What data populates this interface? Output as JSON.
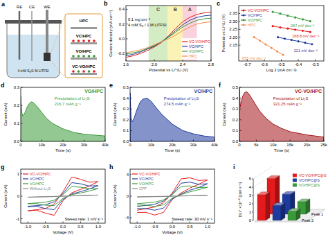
{
  "diagram": {
    "label": "a",
    "electrodes": [
      "RE",
      "CE",
      "WE"
    ],
    "electrolyte": "4 mM S₈/1 M LiTFSI",
    "samples": [
      "HPC",
      "VC/HPC",
      "VO/HPC",
      "VC-VO/HPC"
    ]
  },
  "chart_data": [
    {
      "label": "b",
      "type": "line",
      "x_label": "Potential vs Li⁺/Li (V)",
      "y_label": "Current density (mA cm⁻²)",
      "x": [
        1.6,
        1.7,
        1.8,
        1.9,
        2.0,
        2.1,
        2.2,
        2.3,
        2.4,
        2.5,
        2.6,
        2.7,
        2.8
      ],
      "xlim": [
        1.6,
        2.8
      ],
      "xticks": [
        1.6,
        {
          "value": 2,
          "label": "2.0"
        },
        2.4,
        2.8
      ],
      "ylim": [
        -0.3,
        0.45
      ],
      "yticks": [
        -0.2,
        {
          "value": 0,
          "label": "0.0"
        },
        0.2,
        0.4
      ],
      "regions": [
        {
          "label": "C",
          "from": 1.92,
          "to": 2.19,
          "color": "#d4ecc4"
        },
        {
          "label": "B",
          "from": 2.19,
          "to": 2.4,
          "color": "#fbf2b5"
        },
        {
          "label": "A",
          "from": 2.4,
          "to": 2.6,
          "color": "#f9d2de"
        }
      ],
      "annotations": [
        "0.1 mg cm⁻²",
        "4 mM S₈ / 1 M LiTFSI"
      ],
      "legend": "lower right",
      "series": [
        {
          "name": "VC-VO/HPC",
          "color": "#e41a1c",
          "values": [
            -0.25,
            -0.23,
            -0.2,
            -0.16,
            -0.11,
            -0.05,
            0.04,
            0.14,
            0.23,
            0.29,
            0.33,
            0.35,
            0.36
          ]
        },
        {
          "name": "VC/HPC",
          "color": "#1f3a9e",
          "values": [
            -0.23,
            -0.21,
            -0.18,
            -0.14,
            -0.1,
            -0.04,
            0.03,
            0.11,
            0.19,
            0.25,
            0.29,
            0.31,
            0.32
          ]
        },
        {
          "name": "VO/HPC",
          "color": "#3a9a3a",
          "values": [
            -0.21,
            -0.19,
            -0.17,
            -0.13,
            -0.09,
            -0.04,
            0.02,
            0.09,
            0.16,
            0.21,
            0.25,
            0.27,
            0.28
          ]
        },
        {
          "name": "HPC",
          "color": "#f28e4b",
          "values": [
            -0.19,
            -0.17,
            -0.15,
            -0.12,
            -0.08,
            -0.04,
            0.0,
            0.05,
            0.11,
            0.16,
            0.2,
            0.22,
            0.23
          ]
        }
      ]
    },
    {
      "label": "c",
      "type": "line",
      "x_label": "Log J (mA cm⁻²)",
      "y_label": "Potential vs Li⁺/Li (V)",
      "xlim": [
        -0.75,
        -0.25
      ],
      "xticks": [
        -0.7,
        -0.6,
        -0.5,
        -0.4,
        -0.3
      ],
      "ylim": [
        2.05,
        2.4
      ],
      "yticks": [
        2.15,
        {
          "value": 2.2,
          "label": "2.20"
        },
        2.25,
        {
          "value": 2.3,
          "label": "2.30"
        },
        2.35
      ],
      "legend": "upper left",
      "series": [
        {
          "name": "VC-VO/HPC",
          "color": "#e41a1c",
          "marker": "circle",
          "slope_label": "168.8 mV dec⁻¹",
          "x": [
            -0.55,
            -0.506,
            -0.462,
            -0.418,
            -0.374,
            -0.33
          ],
          "values": [
            2.27,
            2.262,
            2.255,
            2.248,
            2.241,
            2.233
          ]
        },
        {
          "name": "VC/HPC",
          "color": "#1f3a9e",
          "marker": "circle",
          "slope_label": "221 mV dec⁻¹",
          "x": [
            -0.52,
            -0.48,
            -0.44,
            -0.4,
            -0.36,
            -0.32
          ],
          "values": [
            2.2,
            2.191,
            2.183,
            2.174,
            2.165,
            2.156
          ]
        },
        {
          "name": "VO/HPC",
          "color": "#3a9a3a",
          "marker": "circle",
          "slope_label": "267 mV dec⁻¹",
          "x": [
            -0.55,
            -0.506,
            -0.462,
            -0.418,
            -0.374,
            -0.33
          ],
          "values": [
            2.36,
            2.349,
            2.336,
            2.325,
            2.313,
            2.301
          ]
        },
        {
          "name": "HPC",
          "color": "#f28e4b",
          "marker": "circle",
          "slope_label": "653 mV dec⁻¹",
          "x": [
            -0.66,
            -0.626,
            -0.592,
            -0.558,
            -0.524,
            -0.49
          ],
          "values": [
            2.2,
            2.178,
            2.155,
            2.133,
            2.111,
            2.089
          ]
        }
      ]
    },
    {
      "label": "d",
      "type": "area",
      "x_label": "Time (s)",
      "y_label": "Current (mA)",
      "x": [
        0,
        500,
        1000,
        2000,
        3000,
        4000,
        5000,
        6000,
        8000,
        10000,
        12000,
        15000,
        20000,
        25000,
        30000,
        35000,
        40000
      ],
      "xlim": [
        0,
        40000
      ],
      "xticks": [
        0,
        {
          "value": 10000,
          "label": "10k"
        },
        {
          "value": 20000,
          "label": "20k"
        },
        {
          "value": 30000,
          "label": "30k"
        },
        {
          "value": 40000,
          "label": "40k"
        }
      ],
      "ylim": [
        0,
        0.3
      ],
      "yticks": [
        {
          "value": 0,
          "label": "0.0"
        },
        0.1,
        0.2,
        0.3
      ],
      "annotations": [
        "Precipitation of Li₂S",
        "216.7 mAh g⁻¹"
      ],
      "series": [
        {
          "name": "VO/HPC",
          "color": "#3a9a3a",
          "values": [
            0.25,
            0.16,
            0.14,
            0.16,
            0.19,
            0.21,
            0.22,
            0.215,
            0.19,
            0.16,
            0.13,
            0.1,
            0.07,
            0.05,
            0.04,
            0.035,
            0.03
          ]
        }
      ]
    },
    {
      "label": "e",
      "type": "area",
      "x_label": "Time (s)",
      "y_label": "Current (mA)",
      "x": [
        0,
        500,
        1000,
        2000,
        3000,
        4000,
        5000,
        6000,
        8000,
        10000,
        12000,
        15000,
        20000,
        25000,
        30000,
        35000,
        40000
      ],
      "xlim": [
        0,
        40000
      ],
      "xticks": [
        0,
        {
          "value": 10000,
          "label": "10k"
        },
        {
          "value": 20000,
          "label": "20k"
        },
        {
          "value": 30000,
          "label": "30k"
        },
        {
          "value": 40000,
          "label": "40k"
        }
      ],
      "ylim": [
        0,
        0.5
      ],
      "yticks": [
        {
          "value": 0,
          "label": "0.0"
        },
        0.1,
        0.2,
        0.3,
        0.4,
        0.5
      ],
      "annotations": [
        "Precipitation of Li₂S",
        "274.5 mAh g⁻¹"
      ],
      "series": [
        {
          "name": "VC/HPC",
          "color": "#1f3a9e",
          "values": [
            0.45,
            0.2,
            0.18,
            0.22,
            0.28,
            0.33,
            0.37,
            0.39,
            0.4,
            0.37,
            0.32,
            0.25,
            0.16,
            0.1,
            0.07,
            0.05,
            0.04
          ]
        }
      ]
    },
    {
      "label": "f",
      "type": "area",
      "x_label": "Time (s)",
      "y_label": "Current (mA)",
      "x": [
        0,
        250,
        500,
        1000,
        1500,
        2000,
        2500,
        3000,
        4000,
        5000,
        6000,
        8000,
        10000,
        12500,
        15000,
        20000,
        25000
      ],
      "xlim": [
        0,
        25000
      ],
      "xticks": [
        0,
        {
          "value": 5000,
          "label": "5k"
        },
        {
          "value": 10000,
          "label": "10k"
        },
        {
          "value": 15000,
          "label": "15k"
        },
        {
          "value": 20000,
          "label": "20k"
        },
        {
          "value": 25000,
          "label": "25k"
        }
      ],
      "ylim": [
        0,
        0.5
      ],
      "yticks": [
        {
          "value": 0,
          "label": "0.0"
        },
        0.1,
        0.2,
        0.3,
        0.4,
        0.5
      ],
      "annotations": [
        "Precipitation of Li₂S",
        "321.25 mAh g⁻¹"
      ],
      "series": [
        {
          "name": "VC-VO/HPC",
          "color": "#a3141a",
          "values": [
            0.5,
            0.32,
            0.36,
            0.42,
            0.45,
            0.46,
            0.45,
            0.43,
            0.38,
            0.33,
            0.28,
            0.21,
            0.16,
            0.12,
            0.09,
            0.06,
            0.04
          ]
        }
      ]
    },
    {
      "label": "g",
      "type": "line",
      "x_label": "Voltage (V)",
      "y_label": "Current (mA)",
      "x": [
        -1,
        -0.75,
        -0.5,
        -0.25,
        0,
        0.25,
        0.5,
        0.75,
        1,
        0.75,
        0.5,
        0.25,
        0,
        -0.25,
        -0.5,
        -0.75,
        -1
      ],
      "xlim": [
        -1.2,
        1.2
      ],
      "xticks": [
        {
          "value": -1,
          "label": "-1.0"
        },
        -0.5,
        {
          "value": 0,
          "label": "0.0"
        },
        0.5,
        {
          "value": 1,
          "label": "1.0"
        }
      ],
      "ylim": [
        -1.2,
        1.2
      ],
      "yticks": [
        -1,
        0,
        1
      ],
      "annotations": [
        "Sweep rate: 1 mV s⁻¹"
      ],
      "legend": "upper left",
      "series": [
        {
          "name": "VC-VO/HPC",
          "color": "#e41a1c",
          "values": [
            -0.65,
            -0.6,
            -0.55,
            -0.35,
            0.2,
            0.85,
            0.75,
            0.62,
            0.65,
            0.45,
            0.3,
            0.15,
            -0.2,
            -0.85,
            -0.75,
            -0.62,
            -0.65
          ]
        },
        {
          "name": "VC/HPC",
          "color": "#1f3a9e",
          "values": [
            -0.45,
            -0.42,
            -0.38,
            -0.25,
            0.12,
            0.6,
            0.55,
            0.45,
            0.47,
            0.32,
            0.2,
            0.1,
            -0.14,
            -0.6,
            -0.55,
            -0.45,
            -0.47
          ]
        },
        {
          "name": "VO/HPC",
          "color": "#3a9a3a",
          "values": [
            -0.33,
            -0.3,
            -0.27,
            -0.18,
            0.08,
            0.42,
            0.4,
            0.33,
            0.34,
            0.23,
            0.14,
            0.07,
            -0.1,
            -0.42,
            -0.4,
            -0.33,
            -0.34
          ]
        },
        {
          "name": "Without Li₂S",
          "color": "#888888",
          "values": [
            -0.05,
            -0.04,
            -0.03,
            -0.02,
            0,
            0.02,
            0.03,
            0.04,
            0.05,
            0.03,
            0.02,
            0.01,
            0,
            -0.01,
            -0.02,
            -0.03,
            -0.04
          ]
        }
      ]
    },
    {
      "label": "h",
      "type": "line",
      "x_label": "Voltage (V)",
      "y_label": "Current (mA)",
      "x": [
        -1,
        -0.75,
        -0.5,
        -0.25,
        0,
        0.25,
        0.5,
        0.75,
        1,
        0.75,
        0.5,
        0.25,
        0,
        -0.25,
        -0.5,
        -0.75,
        -1
      ],
      "xlim": [
        -1.2,
        1.2
      ],
      "xticks": [
        {
          "value": -1,
          "label": "-1.0"
        },
        -0.5,
        {
          "value": 0,
          "label": "0.0"
        },
        0.5,
        {
          "value": 1,
          "label": "1.0"
        }
      ],
      "ylim": [
        -5,
        5
      ],
      "yticks": [
        -4,
        0,
        4
      ],
      "annotations": [
        "Sweep rate: 30 mV s⁻¹"
      ],
      "legend": "upper left",
      "series": [
        {
          "name": "VC-VO/HPC",
          "color": "#e41a1c",
          "values": [
            -2.6,
            -2.3,
            -2.0,
            -1.2,
            0.6,
            3.2,
            3.4,
            2.9,
            3.0,
            2.2,
            1.5,
            0.6,
            -0.6,
            -3.0,
            -3.5,
            -3.0,
            -3.0
          ]
        },
        {
          "name": "VC/HPC",
          "color": "#1f3a9e",
          "values": [
            -1.9,
            -1.7,
            -1.5,
            -0.9,
            0.4,
            2.4,
            2.6,
            2.2,
            2.3,
            1.6,
            1.1,
            0.4,
            -0.5,
            -2.2,
            -2.6,
            -2.3,
            -2.3
          ]
        },
        {
          "name": "VO/HPC",
          "color": "#3a9a3a",
          "values": [
            -1.4,
            -1.25,
            -1.1,
            -0.7,
            0.3,
            1.8,
            1.9,
            1.6,
            1.65,
            1.2,
            0.8,
            0.3,
            -0.35,
            -1.6,
            -1.9,
            -1.65,
            -1.65
          ]
        },
        {
          "name": "CFP",
          "color": "#888888",
          "values": [
            -0.15,
            -0.12,
            -0.09,
            -0.06,
            0,
            0.06,
            0.09,
            0.12,
            0.15,
            0.09,
            0.06,
            0.03,
            0,
            -0.03,
            -0.06,
            -0.09,
            -0.12
          ]
        }
      ]
    },
    {
      "label": "i",
      "type": "bar",
      "y_label": "DLi⁺ ×10⁻⁸ (cm² s⁻¹)",
      "categories": [
        "Peak 1",
        "Peak 2"
      ],
      "ylim": [
        0,
        5
      ],
      "yticks": [
        0,
        1,
        2,
        3,
        4,
        5
      ],
      "legend": "upper right",
      "series": [
        {
          "name": "VC-VO/HPC@S",
          "color": "#e41a1c",
          "values": [
            4.3,
            3.1
          ]
        },
        {
          "name": "VC/HPC@S",
          "color": "#1f3a9e",
          "values": [
            2.4,
            1.8
          ]
        },
        {
          "name": "VO/HPC@S",
          "color": "#3a9a3a",
          "values": [
            1.5,
            1.1
          ]
        }
      ]
    }
  ]
}
